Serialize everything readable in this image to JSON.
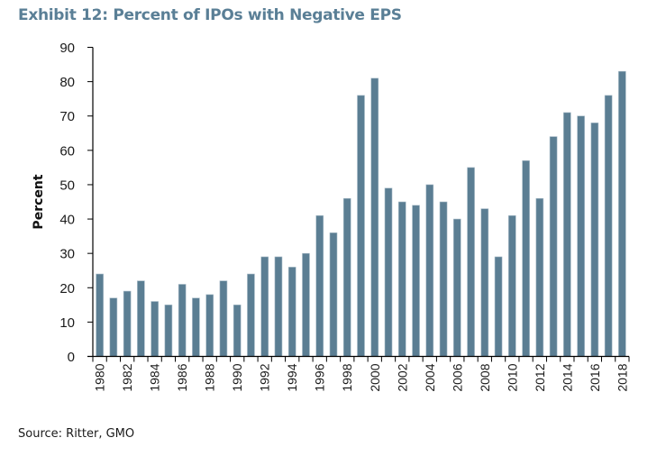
{
  "title": "Exhibit 12: Percent of IPOs with Negative EPS",
  "source": "Source: Ritter, GMO",
  "colors": {
    "bar": "#5b7e93",
    "bar_edge": "#a9bcc8",
    "title": "#5a7f96",
    "axis": "#000000"
  },
  "chart_data": {
    "type": "bar",
    "title": "Exhibit 12: Percent of IPOs with Negative EPS",
    "xlabel": "",
    "ylabel": "Percent",
    "ylim": [
      0,
      90
    ],
    "yticks": [
      0,
      10,
      20,
      30,
      40,
      50,
      60,
      70,
      80,
      90
    ],
    "grid": false,
    "legend": "none",
    "categories": [
      "1980",
      "1981",
      "1982",
      "1983",
      "1984",
      "1985",
      "1986",
      "1987",
      "1988",
      "1989",
      "1990",
      "1991",
      "1992",
      "1993",
      "1994",
      "1995",
      "1996",
      "1997",
      "1998",
      "1999",
      "2000",
      "2001",
      "2002",
      "2003",
      "2004",
      "2005",
      "2006",
      "2007",
      "2008",
      "2009",
      "2010",
      "2011",
      "2012",
      "2013",
      "2014",
      "2015",
      "2016",
      "2017",
      "2018"
    ],
    "xtick_labels": [
      "1980",
      "1982",
      "1984",
      "1986",
      "1988",
      "1990",
      "1992",
      "1994",
      "1996",
      "1998",
      "2000",
      "2002",
      "2004",
      "2006",
      "2008",
      "2010",
      "2012",
      "2014",
      "2016",
      "2018"
    ],
    "values": [
      24,
      17,
      19,
      22,
      16,
      15,
      21,
      17,
      18,
      22,
      15,
      24,
      29,
      29,
      26,
      30,
      41,
      36,
      46,
      76,
      81,
      49,
      45,
      44,
      50,
      45,
      40,
      55,
      43,
      29,
      41,
      57,
      46,
      64,
      71,
      70,
      68,
      76,
      83
    ]
  }
}
